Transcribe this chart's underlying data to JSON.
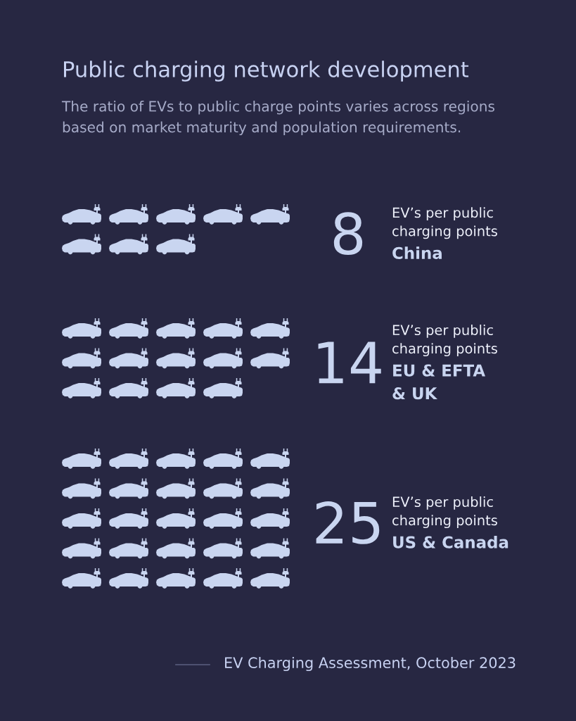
{
  "chart_data": {
    "type": "other",
    "title": "Public charging network development",
    "subtitle": "The ratio of EVs to public charge points varies across regions\nbased on market maturity and population requirements.",
    "categories": [
      "China",
      "EU & EFTA\n& UK",
      "US & Canada"
    ],
    "values": [
      8,
      14,
      25
    ],
    "color": "#c9d5f0",
    "data_labels": true,
    "annotations": [
      "EV’s per public\ncharging points",
      "EV’s per public\ncharging points",
      "EV’s per public\ncharging points",
      "EV Charging Assessment, October 2023"
    ]
  }
}
